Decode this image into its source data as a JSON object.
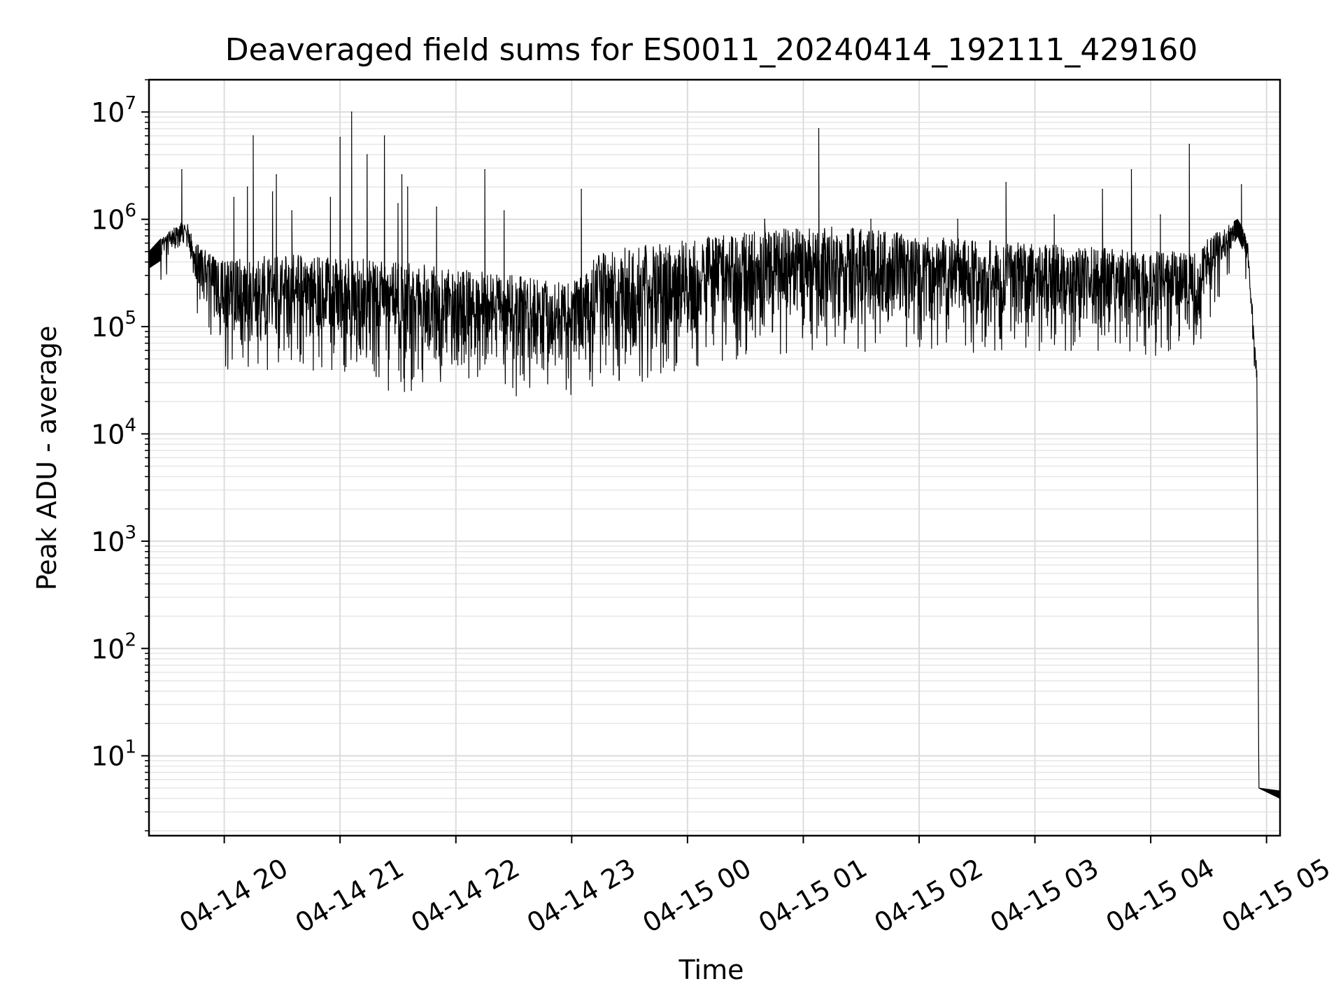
{
  "chart_data": {
    "type": "line",
    "title": "Deaveraged field sums for ES0011_20240414_192111_429160",
    "xlabel": "Time",
    "ylabel": "Peak ADU - average",
    "y_scale": "log",
    "ylim": [
      1.8,
      20000000
    ],
    "xlim": [
      "2024-04-14 19:21",
      "2024-04-15 05:07"
    ],
    "grid": {
      "major": true,
      "minor_y": true
    },
    "line_color": "#000000",
    "x_ticks": [
      {
        "value": "2024-04-14 20:00",
        "label": "04-14 20"
      },
      {
        "value": "2024-04-14 21:00",
        "label": "04-14 21"
      },
      {
        "value": "2024-04-14 22:00",
        "label": "04-14 22"
      },
      {
        "value": "2024-04-14 23:00",
        "label": "04-14 23"
      },
      {
        "value": "2024-04-15 00:00",
        "label": "04-15 00"
      },
      {
        "value": "2024-04-15 01:00",
        "label": "04-15 01"
      },
      {
        "value": "2024-04-15 02:00",
        "label": "04-15 02"
      },
      {
        "value": "2024-04-15 03:00",
        "label": "04-15 03"
      },
      {
        "value": "2024-04-15 04:00",
        "label": "04-15 04"
      },
      {
        "value": "2024-04-15 05:00",
        "label": "04-15 05"
      }
    ],
    "y_ticks": [
      {
        "value": 10,
        "base": "10",
        "exp": "1"
      },
      {
        "value": 100,
        "base": "10",
        "exp": "2"
      },
      {
        "value": 1000,
        "base": "10",
        "exp": "3"
      },
      {
        "value": 10000,
        "base": "10",
        "exp": "4"
      },
      {
        "value": 100000,
        "base": "10",
        "exp": "5"
      },
      {
        "value": 1000000,
        "base": "10",
        "exp": "6"
      },
      {
        "value": 10000000,
        "base": "10",
        "exp": "7"
      }
    ],
    "series": [
      {
        "trend": [
          [
            "2024-04-14 19:21",
            350000,
            500000
          ],
          [
            "2024-04-14 19:30",
            450000,
            750000
          ],
          [
            "2024-04-14 19:40",
            600000,
            1000000
          ],
          [
            "2024-04-14 19:45",
            250000,
            600000
          ],
          [
            "2024-04-14 20:00",
            70000,
            400000
          ],
          [
            "2024-04-14 20:30",
            70000,
            500000
          ],
          [
            "2024-04-14 21:00",
            60000,
            450000
          ],
          [
            "2024-04-14 21:30",
            40000,
            400000
          ],
          [
            "2024-04-14 22:00",
            50000,
            350000
          ],
          [
            "2024-04-14 22:30",
            40000,
            300000
          ],
          [
            "2024-04-14 23:00",
            40000,
            250000
          ],
          [
            "2024-04-14 23:15",
            50000,
            500000
          ],
          [
            "2024-04-14 23:30",
            50000,
            550000
          ],
          [
            "2024-04-15 00:00",
            70000,
            650000
          ],
          [
            "2024-04-15 00:30",
            90000,
            750000
          ],
          [
            "2024-04-15 01:00",
            100000,
            850000
          ],
          [
            "2024-04-15 01:30",
            100000,
            850000
          ],
          [
            "2024-04-15 02:00",
            100000,
            700000
          ],
          [
            "2024-04-15 02:30",
            100000,
            650000
          ],
          [
            "2024-04-15 03:00",
            100000,
            600000
          ],
          [
            "2024-04-15 03:30",
            100000,
            550000
          ],
          [
            "2024-04-15 04:00",
            90000,
            500000
          ],
          [
            "2024-04-15 04:25",
            100000,
            500000
          ],
          [
            "2024-04-15 04:30",
            200000,
            700000
          ],
          [
            "2024-04-15 04:45",
            700000,
            1000000
          ],
          [
            "2024-04-15 04:50",
            400000,
            700000
          ],
          [
            "2024-04-15 04:55",
            25000,
            40000
          ],
          [
            "2024-04-15 04:56",
            5,
            5
          ],
          [
            "2024-04-15 05:07",
            4,
            4.7
          ]
        ],
        "spikes": [
          [
            "2024-04-14 19:38",
            2900000
          ],
          [
            "2024-04-14 20:05",
            1600000
          ],
          [
            "2024-04-14 20:12",
            2000000
          ],
          [
            "2024-04-14 20:15",
            6000000
          ],
          [
            "2024-04-14 20:25",
            1800000
          ],
          [
            "2024-04-14 20:27",
            2600000
          ],
          [
            "2024-04-14 20:35",
            1200000
          ],
          [
            "2024-04-14 20:55",
            1600000
          ],
          [
            "2024-04-14 21:00",
            5800000
          ],
          [
            "2024-04-14 21:06",
            10000000
          ],
          [
            "2024-04-14 21:14",
            4000000
          ],
          [
            "2024-04-14 21:23",
            6000000
          ],
          [
            "2024-04-14 21:30",
            1400000
          ],
          [
            "2024-04-14 21:32",
            2600000
          ],
          [
            "2024-04-14 21:35",
            2000000
          ],
          [
            "2024-04-14 21:50",
            1300000
          ],
          [
            "2024-04-14 22:15",
            2900000
          ],
          [
            "2024-04-14 22:25",
            1200000
          ],
          [
            "2024-04-14 23:05",
            1900000
          ],
          [
            "2024-04-15 00:40",
            1000000
          ],
          [
            "2024-04-15 01:08",
            7000000
          ],
          [
            "2024-04-15 01:35",
            1000000
          ],
          [
            "2024-04-15 02:20",
            1000000
          ],
          [
            "2024-04-15 02:45",
            2200000
          ],
          [
            "2024-04-15 03:10",
            1100000
          ],
          [
            "2024-04-15 03:35",
            1900000
          ],
          [
            "2024-04-15 03:50",
            2900000
          ],
          [
            "2024-04-15 04:05",
            1100000
          ],
          [
            "2024-04-15 04:20",
            5000000
          ],
          [
            "2024-04-15 04:47",
            2100000
          ]
        ]
      }
    ]
  }
}
